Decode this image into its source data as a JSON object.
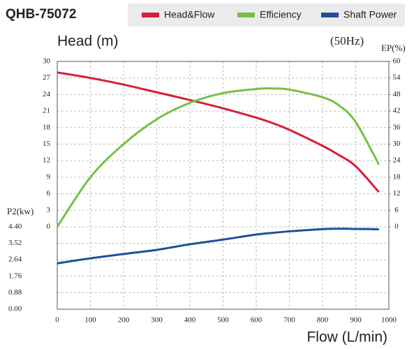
{
  "chart_data": {
    "type": "line",
    "title": "QHB-75072",
    "subtitle": "(50Hz)",
    "ylabel": "Head (m)",
    "y2label": "EP(%)",
    "y3label": "P2(kw)",
    "xlabel": "Flow (L/min)",
    "x": [
      0,
      100,
      200,
      300,
      400,
      500,
      600,
      650,
      700,
      800,
      850,
      900,
      970
    ],
    "xlim": [
      0,
      1000
    ],
    "xticks": [
      0,
      100,
      200,
      300,
      400,
      500,
      600,
      700,
      800,
      900,
      1000
    ],
    "ylim": [
      0,
      30
    ],
    "yticks": [
      0,
      3,
      6,
      9,
      12,
      15,
      18,
      21,
      24,
      27,
      30
    ],
    "y2lim": [
      0,
      60
    ],
    "y2ticks": [
      0,
      6,
      12,
      18,
      24,
      30,
      36,
      42,
      48,
      54,
      60
    ],
    "y3lim": [
      0,
      4.4
    ],
    "y3ticks": [
      {
        "value": 0,
        "label": "0.00"
      },
      {
        "value": 0.88,
        "label": "0.88"
      },
      {
        "value": 1.76,
        "label": "1.76"
      },
      {
        "value": 2.64,
        "label": "2.64"
      },
      {
        "value": 3.52,
        "label": "3.52"
      },
      {
        "value": 4.4,
        "label": "4.40"
      }
    ],
    "grid": true,
    "series": [
      {
        "name": "Head&Flow",
        "color": "#d5203a",
        "axis": "y",
        "values": [
          28,
          27,
          25.8,
          24.4,
          23,
          21.5,
          19.8,
          18.8,
          17.6,
          14.7,
          13,
          11,
          6.3
        ]
      },
      {
        "name": "Efficiency",
        "color": "#77c043",
        "axis": "y2",
        "values": [
          0,
          18,
          30,
          39,
          45,
          48.5,
          50,
          50.2,
          49.8,
          47,
          44,
          38,
          22.6
        ]
      },
      {
        "name": "Shaft Power",
        "color": "#1f4f9c",
        "axis": "y3",
        "values": [
          2.45,
          2.72,
          2.95,
          3.17,
          3.47,
          3.72,
          3.99,
          4.08,
          4.16,
          4.28,
          4.3,
          4.29,
          4.27
        ]
      }
    ]
  }
}
